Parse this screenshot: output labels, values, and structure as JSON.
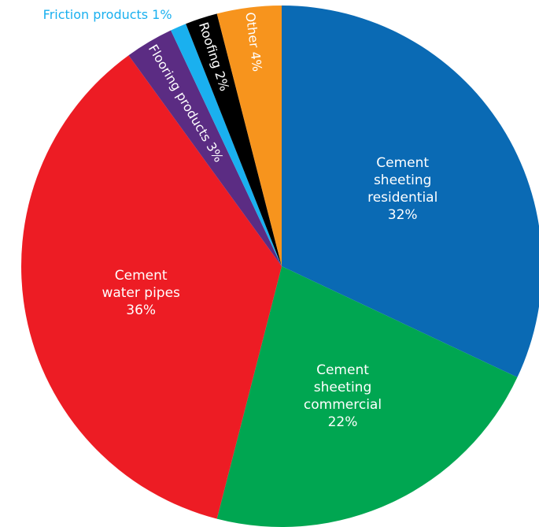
{
  "chart_data": {
    "type": "pie",
    "categories": [
      "Cement sheeting residential",
      "Cement sheeting commercial",
      "Cement water pipes",
      "Flooring products",
      "Friction products",
      "Roofing",
      "Other"
    ],
    "values": [
      32,
      22,
      36,
      3,
      1,
      2,
      4
    ],
    "value_labels": [
      "32%",
      "22%",
      "36%",
      "3%",
      "1%",
      "2%",
      "4%"
    ],
    "colors": [
      "#0a6ab4",
      "#00a651",
      "#ed1c24",
      "#5b2c83",
      "#1ab0ef",
      "#000000",
      "#f7941d"
    ]
  }
}
